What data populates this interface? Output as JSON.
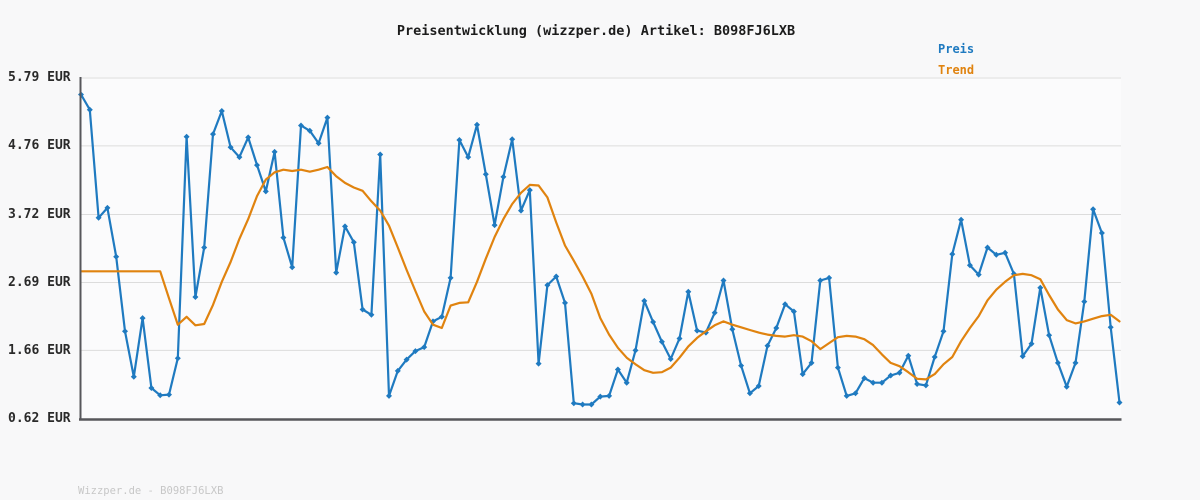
{
  "title": "Preisentwicklung (wizzper.de) Artikel: B098FJ6LXB",
  "legend": {
    "preis_label": "Preis",
    "trend_label": "Trend"
  },
  "footer": "Wizzper.de - B098FJ6LXB",
  "colors": {
    "preis": "#1f7ac0",
    "trend": "#e0830f",
    "grid": "#dcdcdc",
    "axis": "#57575b",
    "title_text": "#1c1c1c",
    "axis_label_text": "#2a2a2a",
    "footer_text": "#c7c7c7",
    "background": "#f8f8f9",
    "plot_background": "#fbfbfc"
  },
  "y_axis": {
    "tick_labels": [
      "5.79 EUR",
      "4.76 EUR",
      "3.72 EUR",
      "2.69 EUR",
      "1.66 EUR",
      "0.62 EUR"
    ],
    "tick_values": [
      5.79,
      4.76,
      3.72,
      2.69,
      1.66,
      0.62
    ],
    "unit": "EUR"
  },
  "chart_data": {
    "type": "line",
    "title": "Preisentwicklung (wizzper.de) Artikel: B098FJ6LXB",
    "xlabel": "",
    "ylabel": "EUR",
    "ylim": [
      0.62,
      5.79
    ],
    "x_tick_labels": [],
    "grid": "horizontal",
    "legend_position": "top-right",
    "series": [
      {
        "name": "Preis",
        "color": "#1f7ac0",
        "marker": "diamond",
        "values": [
          5.54,
          5.31,
          3.67,
          3.82,
          3.08,
          1.95,
          1.26,
          2.15,
          1.09,
          0.98,
          0.99,
          1.54,
          4.9,
          2.47,
          3.22,
          4.94,
          5.29,
          4.74,
          4.59,
          4.89,
          4.47,
          4.07,
          4.67,
          3.37,
          2.92,
          5.07,
          4.99,
          4.8,
          5.19,
          2.84,
          3.54,
          3.3,
          2.28,
          2.2,
          4.63,
          0.97,
          1.35,
          1.52,
          1.65,
          1.71,
          2.1,
          2.17,
          2.76,
          4.85,
          4.59,
          5.08,
          4.33,
          3.56,
          4.29,
          4.86,
          3.78,
          4.09,
          1.46,
          2.65,
          2.78,
          2.38,
          0.86,
          0.84,
          0.84,
          0.96,
          0.97,
          1.37,
          1.17,
          1.66,
          2.41,
          2.09,
          1.79,
          1.53,
          1.84,
          2.55,
          1.96,
          1.93,
          2.23,
          2.72,
          1.98,
          1.43,
          1.01,
          1.12,
          1.73,
          2.0,
          2.36,
          2.25,
          1.3,
          1.47,
          2.72,
          2.76,
          1.4,
          0.97,
          1.01,
          1.24,
          1.17,
          1.17,
          1.28,
          1.32,
          1.58,
          1.15,
          1.13,
          1.56,
          1.95,
          3.12,
          3.64,
          2.95,
          2.81,
          3.22,
          3.11,
          3.14,
          2.82,
          1.57,
          1.76,
          2.61,
          1.89,
          1.47,
          1.11,
          1.47,
          2.4,
          3.8,
          3.44,
          2.01,
          0.87
        ]
      },
      {
        "name": "Trend",
        "color": "#e0830f",
        "marker": "none",
        "values": [
          2.86,
          2.86,
          2.86,
          2.86,
          2.86,
          2.86,
          2.86,
          2.86,
          2.86,
          2.86,
          2.45,
          2.05,
          2.17,
          2.04,
          2.06,
          2.35,
          2.7,
          3.0,
          3.35,
          3.65,
          4.0,
          4.25,
          4.36,
          4.4,
          4.38,
          4.4,
          4.37,
          4.4,
          4.44,
          4.3,
          4.2,
          4.13,
          4.08,
          3.92,
          3.78,
          3.55,
          3.22,
          2.88,
          2.56,
          2.25,
          2.05,
          2.0,
          2.34,
          2.38,
          2.39,
          2.7,
          3.05,
          3.38,
          3.65,
          3.88,
          4.05,
          4.17,
          4.16,
          3.98,
          3.6,
          3.25,
          3.02,
          2.78,
          2.52,
          2.15,
          1.9,
          1.7,
          1.55,
          1.45,
          1.36,
          1.32,
          1.33,
          1.4,
          1.55,
          1.72,
          1.85,
          1.95,
          2.04,
          2.1,
          2.05,
          2.01,
          1.97,
          1.93,
          1.9,
          1.88,
          1.87,
          1.89,
          1.87,
          1.8,
          1.68,
          1.77,
          1.86,
          1.88,
          1.87,
          1.83,
          1.74,
          1.6,
          1.47,
          1.42,
          1.33,
          1.23,
          1.22,
          1.3,
          1.45,
          1.56,
          1.8,
          2.0,
          2.18,
          2.42,
          2.58,
          2.7,
          2.8,
          2.82,
          2.8,
          2.74,
          2.5,
          2.28,
          2.12,
          2.07,
          2.1,
          2.14,
          2.18,
          2.2,
          2.1
        ]
      }
    ]
  }
}
